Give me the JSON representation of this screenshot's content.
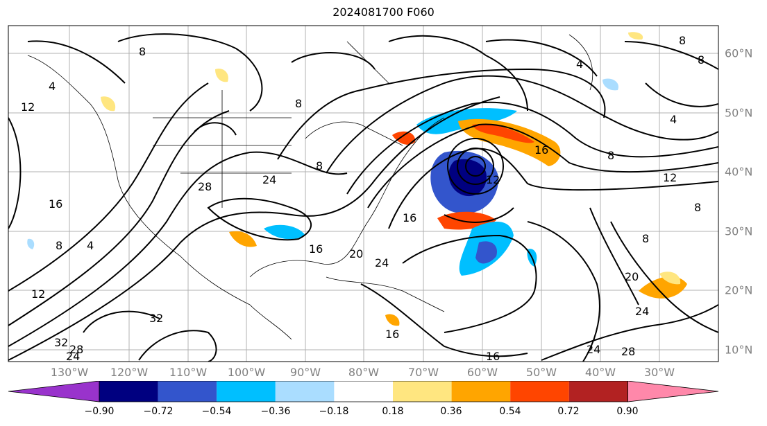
{
  "title": "2024081700 F060",
  "lon_labels": [
    "130°W",
    "120°W",
    "110°W",
    "100°W",
    "90°W",
    "80°W",
    "70°W",
    "60°W",
    "50°W",
    "40°W",
    "30°W"
  ],
  "lat_labels": [
    "60°N",
    "50°N",
    "40°N",
    "30°N",
    "20°N",
    "10°N"
  ],
  "contour_labels": [
    "8",
    "4",
    "12",
    "16",
    "8",
    "4",
    "12",
    "28",
    "24",
    "8",
    "16",
    "20",
    "16",
    "24",
    "32",
    "32",
    "28",
    "24",
    "8",
    "4",
    "16",
    "12",
    "8",
    "8",
    "4",
    "8",
    "12",
    "8",
    "8",
    "20",
    "24",
    "24",
    "28",
    "16",
    "16"
  ],
  "colorbar": {
    "ticks": [
      "−0.90",
      "−0.72",
      "−0.54",
      "−0.36",
      "−0.18",
      "0.18",
      "0.36",
      "0.54",
      "0.72",
      "0.90"
    ],
    "colors": [
      "#9933cc",
      "#000080",
      "#3355cc",
      "#00bfff",
      "#aaddff",
      "#ffffff",
      "#ffe680",
      "#ffa500",
      "#ff4500",
      "#b22222",
      "#ff88aa"
    ]
  }
}
